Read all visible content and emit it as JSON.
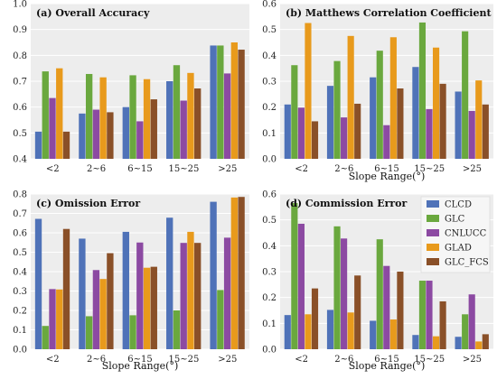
{
  "chart_data": [
    {
      "type": "bar",
      "title": "(a) Overall Accuracy",
      "xlabel": "",
      "ylabel": "",
      "categories": [
        "<2",
        "2~6",
        "6~15",
        "15~25",
        ">25"
      ],
      "ylim": [
        0.4,
        1.0
      ],
      "yticks": [
        0.4,
        0.5,
        0.6,
        0.7,
        0.8,
        0.9,
        1.0
      ],
      "grid": true,
      "series": [
        {
          "name": "CLCD",
          "values": [
            0.505,
            0.575,
            0.6,
            0.7,
            0.838
          ]
        },
        {
          "name": "GLC",
          "values": [
            0.738,
            0.728,
            0.723,
            0.762,
            0.838
          ]
        },
        {
          "name": "CNLUCC",
          "values": [
            0.635,
            0.59,
            0.545,
            0.625,
            0.73
          ]
        },
        {
          "name": "GLAD",
          "values": [
            0.75,
            0.715,
            0.708,
            0.732,
            0.85
          ]
        },
        {
          "name": "GLC_FCS",
          "values": [
            0.505,
            0.58,
            0.63,
            0.672,
            0.822
          ]
        }
      ]
    },
    {
      "type": "bar",
      "title": "(b) Matthews Correlation Coefficient",
      "xlabel": "Slope Range(°)",
      "ylabel": "",
      "categories": [
        "<2",
        "2~6",
        "6~15",
        "15~25",
        ">25"
      ],
      "ylim": [
        0.0,
        0.6
      ],
      "yticks": [
        0.0,
        0.1,
        0.2,
        0.3,
        0.4,
        0.5,
        0.6
      ],
      "grid": true,
      "series": [
        {
          "name": "CLCD",
          "values": [
            0.21,
            0.282,
            0.315,
            0.355,
            0.26
          ]
        },
        {
          "name": "GLC",
          "values": [
            0.362,
            0.378,
            0.418,
            0.527,
            0.493
          ]
        },
        {
          "name": "CNLUCC",
          "values": [
            0.198,
            0.16,
            0.13,
            0.192,
            0.185
          ]
        },
        {
          "name": "GLAD",
          "values": [
            0.525,
            0.475,
            0.47,
            0.43,
            0.303
          ]
        },
        {
          "name": "GLC_FCS",
          "values": [
            0.145,
            0.213,
            0.272,
            0.29,
            0.21
          ]
        }
      ]
    },
    {
      "type": "bar",
      "title": "(c) Omission Error",
      "xlabel": "Slope Range(°)",
      "ylabel": "",
      "categories": [
        "<2",
        "2~6",
        "6~15",
        "15~25",
        ">25"
      ],
      "ylim": [
        0.0,
        0.8
      ],
      "yticks": [
        0.0,
        0.1,
        0.2,
        0.3,
        0.4,
        0.5,
        0.6,
        0.7,
        0.8
      ],
      "grid": true,
      "series": [
        {
          "name": "CLCD",
          "values": [
            0.672,
            0.57,
            0.605,
            0.678,
            0.76
          ]
        },
        {
          "name": "GLC",
          "values": [
            0.12,
            0.17,
            0.175,
            0.2,
            0.305
          ]
        },
        {
          "name": "CNLUCC",
          "values": [
            0.31,
            0.408,
            0.55,
            0.548,
            0.575
          ]
        },
        {
          "name": "GLAD",
          "values": [
            0.308,
            0.362,
            0.42,
            0.605,
            0.782
          ]
        },
        {
          "name": "GLC_FCS",
          "values": [
            0.62,
            0.495,
            0.425,
            0.548,
            0.785
          ]
        }
      ]
    },
    {
      "type": "bar",
      "title": "(d) Commission Error",
      "xlabel": "Slope Range(°)",
      "ylabel": "",
      "categories": [
        "<2",
        "2~6",
        "6~15",
        "15~25",
        ">25"
      ],
      "ylim": [
        0.0,
        0.6
      ],
      "yticks": [
        0.0,
        0.1,
        0.2,
        0.3,
        0.4,
        0.5,
        0.6
      ],
      "grid": true,
      "legend": "top-right",
      "series": [
        {
          "name": "CLCD",
          "values": [
            0.132,
            0.152,
            0.11,
            0.055,
            0.048
          ]
        },
        {
          "name": "GLC",
          "values": [
            0.565,
            0.475,
            0.425,
            0.265,
            0.135
          ]
        },
        {
          "name": "CNLUCC",
          "values": [
            0.485,
            0.428,
            0.322,
            0.265,
            0.212
          ]
        },
        {
          "name": "GLAD",
          "values": [
            0.135,
            0.142,
            0.115,
            0.05,
            0.03
          ]
        },
        {
          "name": "GLC_FCS",
          "values": [
            0.235,
            0.285,
            0.3,
            0.185,
            0.058
          ]
        }
      ]
    }
  ],
  "colors": {
    "CLCD": "#4f72b8",
    "GLC": "#6aa83e",
    "CNLUCC": "#8c4aa2",
    "GLAD": "#e89a1c",
    "GLC_FCS": "#8a5028",
    "panel_bg": "#ededed",
    "grid": "#ffffff"
  }
}
